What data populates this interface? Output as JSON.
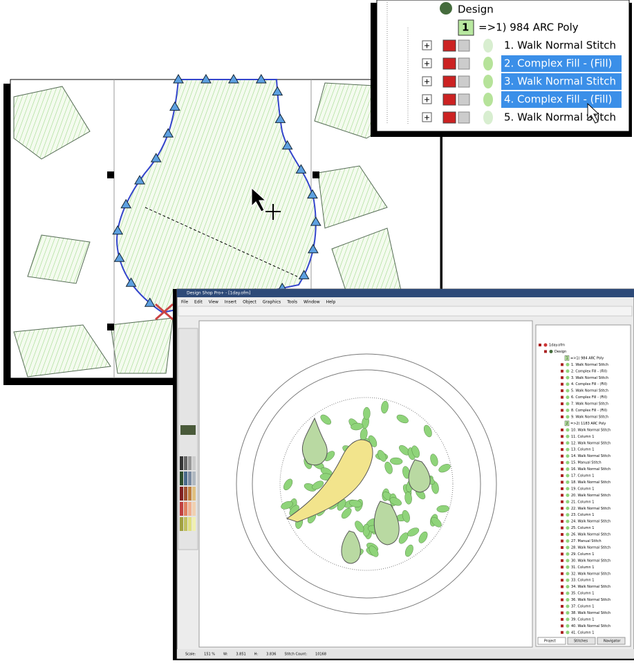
{
  "zoom_tree": {
    "design": "Design",
    "group": {
      "badge": "1",
      "label": "=>1) 984 ARC Poly"
    },
    "items": [
      {
        "label": "1. Walk Normal Stitch",
        "selected": false
      },
      {
        "label": "2. Complex Fill - (Fill)",
        "selected": true
      },
      {
        "label": "3. Walk Normal Stitch",
        "selected": true
      },
      {
        "label": "4. Complex Fill - (Fill)",
        "selected": true
      },
      {
        "label": "5. Walk Normal Stitch",
        "selected": false
      }
    ]
  },
  "app": {
    "title": "Design Shop Pro+ - [1day.ofm]",
    "menu": [
      "File",
      "Edit",
      "View",
      "Insert",
      "Object",
      "Graphics",
      "Tools",
      "Window",
      "Help"
    ],
    "tree": {
      "file": "1day.ofm",
      "design": "Design",
      "groups": [
        {
          "badge": "1",
          "label": "=>1) 984 ARC Poly",
          "items": [
            "1. Walk Normal Stitch",
            "2. Complex Fill - (Fill)",
            "3. Walk Normal Stitch",
            "4. Complex Fill - (Fill)",
            "5. Walk Normal Stitch",
            "6. Complex Fill - (Fill)",
            "7. Walk Normal Stitch",
            "8. Complex Fill - (Fill)",
            "9. Walk Normal Stitch"
          ]
        },
        {
          "badge": "2",
          "label": "=>2) 1183 ARC Poly",
          "items": [
            "10. Walk Normal Stitch",
            "11. Column 1",
            "12. Walk Normal Stitch",
            "13. Column 1",
            "14. Walk Normal Stitch",
            "15. Manual Stitch",
            "16. Walk Normal Stitch",
            "17. Column 1",
            "18. Walk Normal Stitch",
            "19. Column 1",
            "20. Walk Normal Stitch",
            "21. Column 1",
            "22. Walk Normal Stitch",
            "23. Column 1",
            "24. Walk Normal Stitch",
            "25. Column 1",
            "26. Walk Normal Stitch",
            "27. Manual Stitch",
            "28. Walk Normal Stitch",
            "29. Column 1",
            "30. Walk Normal Stitch",
            "31. Column 1",
            "32. Walk Normal Stitch",
            "33. Column 1",
            "34. Walk Normal Stitch",
            "35. Column 1",
            "36. Walk Normal Stitch",
            "37. Column 1",
            "38. Walk Normal Stitch",
            "39. Column 1",
            "40. Walk Normal Stitch",
            "41. Column 1"
          ]
        }
      ]
    },
    "tabs": [
      "Project",
      "Stitches",
      "Navigator"
    ],
    "status": [
      "Scale:",
      "151 %",
      "W:",
      "3.851",
      "H:",
      "3.836",
      "Stitch Count:",
      "10168"
    ]
  }
}
